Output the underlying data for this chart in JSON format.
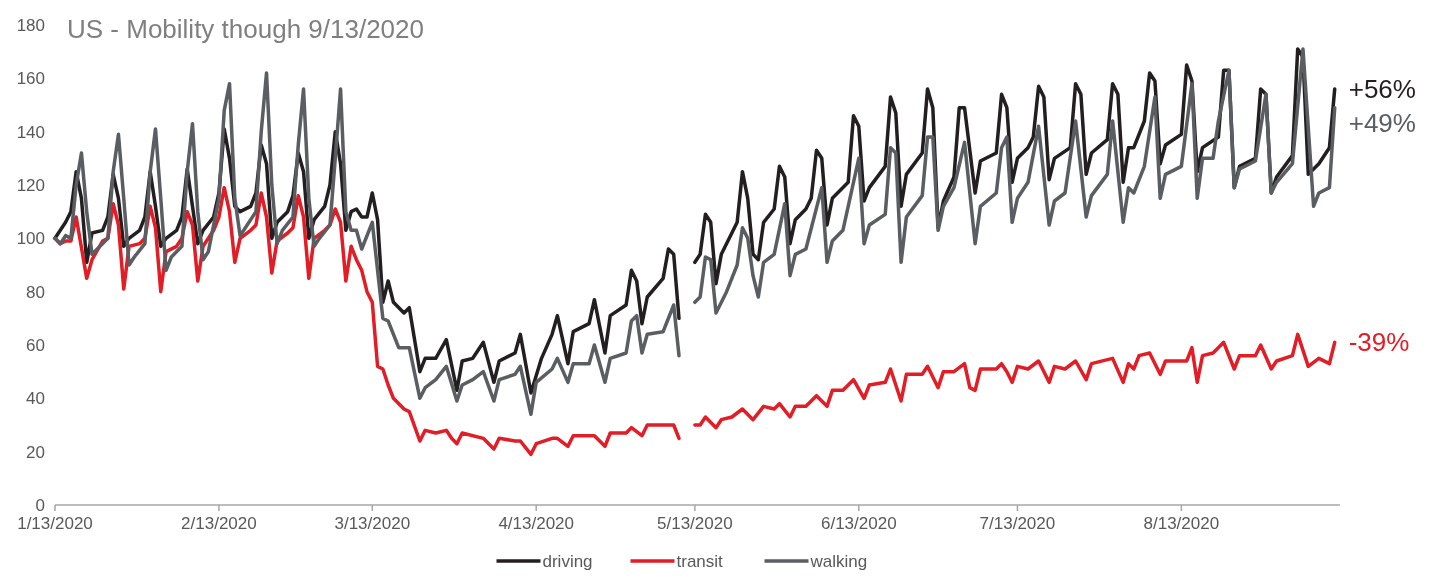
{
  "chart_data": {
    "type": "line",
    "title": "US - Mobility though 9/13/2020",
    "xlim": [
      "2020-01-13",
      "2020-09-12"
    ],
    "xticks": [
      {
        "value": "2020-01-13",
        "label": "1/13/2020"
      },
      {
        "value": "2020-02-13",
        "label": "2/13/2020"
      },
      {
        "value": "2020-03-13",
        "label": "3/13/2020"
      },
      {
        "value": "2020-04-13",
        "label": "4/13/2020"
      },
      {
        "value": "2020-05-13",
        "label": "5/13/2020"
      },
      {
        "value": "2020-06-13",
        "label": "6/13/2020"
      },
      {
        "value": "2020-07-13",
        "label": "7/13/2020"
      },
      {
        "value": "2020-08-13",
        "label": "8/13/2020"
      }
    ],
    "ylim": [
      0,
      180
    ],
    "yticks": [
      0,
      20,
      40,
      60,
      80,
      100,
      120,
      140,
      160,
      180
    ],
    "grid": false,
    "legend": "bottom",
    "marker": "none",
    "line_style": "solid",
    "annotations": [
      {
        "text": "+56%",
        "x": "2020-09-11",
        "y": 156
      },
      {
        "text": "-39%",
        "x": "2020-09-11",
        "y": 61
      },
      {
        "text": "+49%",
        "x": "2020-09-11",
        "y": 149
      }
    ],
    "series": [
      {
        "name": "driving",
        "color": "#231f20",
        "x": [
          "2020-01-13",
          "2020-01-15",
          "2020-01-16",
          "2020-01-17",
          "2020-01-18",
          "2020-01-19",
          "2020-01-20",
          "2020-01-22",
          "2020-01-23",
          "2020-01-24",
          "2020-01-25",
          "2020-01-26",
          "2020-01-27",
          "2020-01-29",
          "2020-01-30",
          "2020-01-31",
          "2020-02-01",
          "2020-02-02",
          "2020-02-03",
          "2020-02-05",
          "2020-02-06",
          "2020-02-07",
          "2020-02-08",
          "2020-02-09",
          "2020-02-10",
          "2020-02-12",
          "2020-02-13",
          "2020-02-14",
          "2020-02-15",
          "2020-02-16",
          "2020-02-17",
          "2020-02-19",
          "2020-02-20",
          "2020-02-21",
          "2020-02-22",
          "2020-02-23",
          "2020-02-24",
          "2020-02-26",
          "2020-02-27",
          "2020-02-28",
          "2020-02-29",
          "2020-03-01",
          "2020-03-02",
          "2020-03-04",
          "2020-03-05",
          "2020-03-06",
          "2020-03-07",
          "2020-03-08",
          "2020-03-09",
          "2020-03-10",
          "2020-03-11",
          "2020-03-12",
          "2020-03-13",
          "2020-03-14",
          "2020-03-15",
          "2020-03-16",
          "2020-03-17",
          "2020-03-19",
          "2020-03-20",
          "2020-03-22",
          "2020-03-23",
          "2020-03-25",
          "2020-03-27",
          "2020-03-29",
          "2020-03-30",
          "2020-04-01",
          "2020-04-03",
          "2020-04-05",
          "2020-04-06",
          "2020-04-09",
          "2020-04-10",
          "2020-04-12",
          "2020-04-14",
          "2020-04-16",
          "2020-04-17",
          "2020-04-19",
          "2020-04-20",
          "2020-04-23",
          "2020-04-24",
          "2020-04-26",
          "2020-04-27",
          "2020-04-30",
          "2020-05-01",
          "2020-05-02",
          "2020-05-03",
          "2020-05-04",
          "2020-05-07",
          "2020-05-08",
          "2020-05-09",
          "2020-05-10",
          "2020-05-11",
          "2020-05-13",
          "2020-05-14",
          "2020-05-15",
          "2020-05-16",
          "2020-05-17",
          "2020-05-18",
          "2020-05-20",
          "2020-05-21",
          "2020-05-22",
          "2020-05-23",
          "2020-05-24",
          "2020-05-25",
          "2020-05-26",
          "2020-05-28",
          "2020-05-29",
          "2020-05-30",
          "2020-05-31",
          "2020-06-01",
          "2020-06-03",
          "2020-06-04",
          "2020-06-05",
          "2020-06-06",
          "2020-06-07",
          "2020-06-08",
          "2020-06-11",
          "2020-06-12",
          "2020-06-13",
          "2020-06-14",
          "2020-06-15",
          "2020-06-18",
          "2020-06-19",
          "2020-06-20",
          "2020-06-21",
          "2020-06-22",
          "2020-06-25",
          "2020-06-26",
          "2020-06-27",
          "2020-06-28",
          "2020-06-29",
          "2020-07-01",
          "2020-07-02",
          "2020-07-03",
          "2020-07-05",
          "2020-07-06",
          "2020-07-09",
          "2020-07-10",
          "2020-07-11",
          "2020-07-12",
          "2020-07-13",
          "2020-07-15",
          "2020-07-16",
          "2020-07-17",
          "2020-07-18",
          "2020-07-19",
          "2020-07-20",
          "2020-07-23",
          "2020-07-24",
          "2020-07-25",
          "2020-07-26",
          "2020-07-27",
          "2020-07-30",
          "2020-07-31",
          "2020-08-01",
          "2020-08-02",
          "2020-08-03",
          "2020-08-04",
          "2020-08-06",
          "2020-08-07",
          "2020-08-08",
          "2020-08-09",
          "2020-08-10",
          "2020-08-13",
          "2020-08-14",
          "2020-08-15",
          "2020-08-16",
          "2020-08-17",
          "2020-08-20",
          "2020-08-21",
          "2020-08-22",
          "2020-08-23",
          "2020-08-24",
          "2020-08-27",
          "2020-08-28",
          "2020-08-29",
          "2020-08-30",
          "2020-08-31",
          "2020-09-03",
          "2020-09-04",
          "2020-09-05",
          "2020-09-06",
          "2020-09-08",
          "2020-09-10",
          "2020-09-11"
        ],
        "values": [
          100,
          106,
          110,
          125,
          115,
          91,
          102,
          103,
          108,
          124,
          115,
          97,
          100,
          103,
          108,
          125,
          112,
          97,
          100,
          103,
          108,
          126,
          112,
          98,
          103,
          108,
          117,
          141,
          130,
          112,
          110,
          112,
          117,
          135,
          128,
          100,
          106,
          110,
          116,
          132,
          125,
          100,
          107,
          112,
          120,
          140,
          128,
          103,
          110,
          111,
          108,
          108,
          117,
          107,
          76,
          84,
          76,
          72,
          74,
          50,
          55,
          55,
          62,
          43,
          54,
          55,
          61,
          46,
          54,
          57,
          64,
          42,
          55,
          64,
          71,
          53,
          65,
          68,
          77,
          57,
          71,
          75,
          88,
          84,
          68,
          78,
          85,
          96,
          94,
          70,
          null,
          91,
          94,
          109,
          106,
          83,
          94,
          102,
          106,
          125,
          115,
          94,
          92,
          106,
          111,
          127,
          123,
          98,
          107,
          111,
          115,
          133,
          130,
          105,
          115,
          121,
          146,
          142,
          114,
          119,
          127,
          153,
          147,
          112,
          124,
          132,
          156,
          149,
          104,
          114,
          123,
          149,
          149,
          117,
          129,
          132,
          154,
          149,
          121,
          130,
          134,
          138,
          157,
          153,
          122,
          130,
          134,
          158,
          154,
          124,
          132,
          137,
          158,
          154,
          121,
          134,
          134,
          144,
          162,
          159,
          128,
          135,
          139,
          165,
          159,
          125,
          134,
          138,
          163,
          163,
          119,
          127,
          130,
          156,
          154,
          117,
          123,
          131,
          171,
          168,
          124,
          128,
          134,
          156
        ]
      },
      {
        "name": "transit",
        "color": "#e21d26",
        "x": [
          "2020-01-13",
          "2020-01-14",
          "2020-01-15",
          "2020-01-16",
          "2020-01-17",
          "2020-01-19",
          "2020-01-20",
          "2020-01-22",
          "2020-01-23",
          "2020-01-24",
          "2020-01-25",
          "2020-01-26",
          "2020-01-27",
          "2020-01-29",
          "2020-01-30",
          "2020-01-31",
          "2020-02-01",
          "2020-02-02",
          "2020-02-03",
          "2020-02-05",
          "2020-02-06",
          "2020-02-07",
          "2020-02-08",
          "2020-02-09",
          "2020-02-10",
          "2020-02-12",
          "2020-02-13",
          "2020-02-14",
          "2020-02-15",
          "2020-02-16",
          "2020-02-17",
          "2020-02-19",
          "2020-02-20",
          "2020-02-21",
          "2020-02-22",
          "2020-02-23",
          "2020-02-24",
          "2020-02-26",
          "2020-02-27",
          "2020-02-28",
          "2020-02-29",
          "2020-03-01",
          "2020-03-02",
          "2020-03-04",
          "2020-03-05",
          "2020-03-06",
          "2020-03-07",
          "2020-03-08",
          "2020-03-09",
          "2020-03-10",
          "2020-03-11",
          "2020-03-12",
          "2020-03-13",
          "2020-03-14",
          "2020-03-15",
          "2020-03-16",
          "2020-03-17",
          "2020-03-19",
          "2020-03-20",
          "2020-03-22",
          "2020-03-23",
          "2020-03-25",
          "2020-03-27",
          "2020-03-28",
          "2020-03-29",
          "2020-03-30",
          "2020-04-03",
          "2020-04-05",
          "2020-04-06",
          "2020-04-09",
          "2020-04-10",
          "2020-04-12",
          "2020-04-13",
          "2020-04-16",
          "2020-04-17",
          "2020-04-19",
          "2020-04-20",
          "2020-04-24",
          "2020-04-26",
          "2020-04-27",
          "2020-04-30",
          "2020-05-01",
          "2020-05-03",
          "2020-05-04",
          "2020-05-08",
          "2020-05-09",
          "2020-05-10",
          "2020-05-11",
          "2020-05-13",
          "2020-05-14",
          "2020-05-15",
          "2020-05-17",
          "2020-05-18",
          "2020-05-20",
          "2020-05-22",
          "2020-05-24",
          "2020-05-26",
          "2020-05-28",
          "2020-05-29",
          "2020-05-31",
          "2020-06-01",
          "2020-06-03",
          "2020-06-05",
          "2020-06-07",
          "2020-06-08",
          "2020-06-10",
          "2020-06-12",
          "2020-06-14",
          "2020-06-15",
          "2020-06-18",
          "2020-06-19",
          "2020-06-21",
          "2020-06-22",
          "2020-06-25",
          "2020-06-26",
          "2020-06-28",
          "2020-06-29",
          "2020-07-01",
          "2020-07-03",
          "2020-07-04",
          "2020-07-05",
          "2020-07-06",
          "2020-07-09",
          "2020-07-10",
          "2020-07-11",
          "2020-07-12",
          "2020-07-13",
          "2020-07-15",
          "2020-07-17",
          "2020-07-19",
          "2020-07-20",
          "2020-07-22",
          "2020-07-24",
          "2020-07-26",
          "2020-07-27",
          "2020-07-31",
          "2020-08-02",
          "2020-08-03",
          "2020-08-04",
          "2020-08-05",
          "2020-08-07",
          "2020-08-09",
          "2020-08-10",
          "2020-08-14",
          "2020-08-15",
          "2020-08-16",
          "2020-08-17",
          "2020-08-19",
          "2020-08-21",
          "2020-08-23",
          "2020-08-24",
          "2020-08-27",
          "2020-08-28",
          "2020-08-30",
          "2020-08-31",
          "2020-09-03",
          "2020-09-04",
          "2020-09-06",
          "2020-09-08",
          "2020-09-10",
          "2020-09-11"
        ],
        "values": [
          100,
          98,
          99,
          99,
          108,
          85,
          92,
          99,
          100,
          113,
          105,
          81,
          97,
          98,
          100,
          112,
          104,
          80,
          95,
          97,
          100,
          110,
          105,
          84,
          97,
          103,
          108,
          119,
          110,
          91,
          100,
          103,
          105,
          117,
          108,
          87,
          99,
          102,
          104,
          116,
          108,
          85,
          100,
          103,
          105,
          111,
          106,
          84,
          97,
          92,
          88,
          80,
          76,
          52,
          51,
          45,
          40,
          36,
          35,
          24,
          28,
          27,
          28,
          25,
          23,
          27,
          25,
          21,
          25,
          24,
          24,
          19,
          23,
          25,
          25,
          22,
          26,
          26,
          22,
          27,
          27,
          29,
          26,
          30,
          30,
          30,
          25,
          null,
          30,
          30,
          33,
          29,
          32,
          33,
          36,
          32,
          37,
          36,
          38,
          33,
          37,
          37,
          41,
          37,
          43,
          43,
          47,
          40,
          45,
          46,
          51,
          39,
          49,
          49,
          52,
          44,
          50,
          50,
          53,
          44,
          43,
          51,
          51,
          53,
          50,
          46,
          52,
          51,
          54,
          46,
          52,
          51,
          54,
          47,
          53,
          55,
          46,
          53,
          51,
          56,
          57,
          49,
          54,
          54,
          59,
          46,
          56,
          57,
          61,
          51,
          56,
          56,
          60,
          51,
          54,
          56,
          64,
          52,
          55,
          53,
          61
        ]
      },
      {
        "name": "walking",
        "color": "#5a5d61",
        "x": [
          "2020-01-13",
          "2020-01-14",
          "2020-01-15",
          "2020-01-16",
          "2020-01-17",
          "2020-01-18",
          "2020-01-19",
          "2020-01-20",
          "2020-01-21",
          "2020-01-23",
          "2020-01-24",
          "2020-01-25",
          "2020-01-26",
          "2020-01-27",
          "2020-01-28",
          "2020-01-30",
          "2020-01-31",
          "2020-02-01",
          "2020-02-02",
          "2020-02-03",
          "2020-02-04",
          "2020-02-06",
          "2020-02-07",
          "2020-02-08",
          "2020-02-09",
          "2020-02-10",
          "2020-02-11",
          "2020-02-13",
          "2020-02-14",
          "2020-02-15",
          "2020-02-16",
          "2020-02-17",
          "2020-02-18",
          "2020-02-20",
          "2020-02-21",
          "2020-02-22",
          "2020-02-23",
          "2020-02-24",
          "2020-02-25",
          "2020-02-27",
          "2020-02-28",
          "2020-02-29",
          "2020-03-01",
          "2020-03-02",
          "2020-03-03",
          "2020-03-05",
          "2020-03-06",
          "2020-03-07",
          "2020-03-08",
          "2020-03-09",
          "2020-03-10",
          "2020-03-11",
          "2020-03-13",
          "2020-03-15",
          "2020-03-16",
          "2020-03-18",
          "2020-03-20",
          "2020-03-22",
          "2020-03-23",
          "2020-03-25",
          "2020-03-27",
          "2020-03-29",
          "2020-03-30",
          "2020-04-01",
          "2020-04-03",
          "2020-04-05",
          "2020-04-06",
          "2020-04-09",
          "2020-04-10",
          "2020-04-12",
          "2020-04-13",
          "2020-04-16",
          "2020-04-17",
          "2020-04-19",
          "2020-04-20",
          "2020-04-23",
          "2020-04-24",
          "2020-04-26",
          "2020-04-27",
          "2020-04-30",
          "2020-05-01",
          "2020-05-02",
          "2020-05-03",
          "2020-05-04",
          "2020-05-07",
          "2020-05-09",
          "2020-05-10",
          "2020-05-11",
          "2020-05-13",
          "2020-05-14",
          "2020-05-15",
          "2020-05-16",
          "2020-05-17",
          "2020-05-19",
          "2020-05-21",
          "2020-05-22",
          "2020-05-23",
          "2020-05-24",
          "2020-05-25",
          "2020-05-26",
          "2020-05-28",
          "2020-05-30",
          "2020-05-31",
          "2020-06-01",
          "2020-06-03",
          "2020-06-06",
          "2020-06-07",
          "2020-06-08",
          "2020-06-10",
          "2020-06-13",
          "2020-06-14",
          "2020-06-15",
          "2020-06-18",
          "2020-06-19",
          "2020-06-20",
          "2020-06-21",
          "2020-06-22",
          "2020-06-25",
          "2020-06-26",
          "2020-06-27",
          "2020-06-28",
          "2020-06-29",
          "2020-07-01",
          "2020-07-03",
          "2020-07-05",
          "2020-07-06",
          "2020-07-09",
          "2020-07-10",
          "2020-07-11",
          "2020-07-12",
          "2020-07-13",
          "2020-07-15",
          "2020-07-17",
          "2020-07-19",
          "2020-07-20",
          "2020-07-22",
          "2020-07-24",
          "2020-07-26",
          "2020-07-27",
          "2020-07-30",
          "2020-07-31",
          "2020-08-02",
          "2020-08-03",
          "2020-08-04",
          "2020-08-06",
          "2020-08-08",
          "2020-08-09",
          "2020-08-10",
          "2020-08-13",
          "2020-08-15",
          "2020-08-16",
          "2020-08-17",
          "2020-08-19",
          "2020-08-20",
          "2020-08-22",
          "2020-08-23",
          "2020-08-24",
          "2020-08-27",
          "2020-08-29",
          "2020-08-30",
          "2020-08-31",
          "2020-09-03",
          "2020-09-05",
          "2020-09-07",
          "2020-09-08",
          "2020-09-10",
          "2020-09-11"
        ],
        "values": [
          100,
          98,
          101,
          100,
          120,
          132,
          110,
          94,
          96,
          100,
          125,
          139,
          115,
          90,
          93,
          98,
          125,
          141,
          115,
          88,
          93,
          97,
          125,
          143,
          110,
          92,
          95,
          115,
          148,
          158,
          115,
          101,
          104,
          110,
          140,
          162,
          120,
          98,
          103,
          108,
          135,
          156,
          115,
          97,
          100,
          105,
          130,
          156,
          110,
          103,
          103,
          96,
          106,
          70,
          69,
          59,
          59,
          40,
          44,
          47,
          52,
          39,
          45,
          47,
          50,
          39,
          47,
          49,
          52,
          34,
          46,
          51,
          55,
          46,
          53,
          53,
          60,
          46,
          55,
          57,
          69,
          71,
          57,
          64,
          65,
          75,
          56,
          null,
          76,
          78,
          93,
          92,
          72,
          80,
          90,
          104,
          100,
          86,
          78,
          91,
          94,
          113,
          86,
          94,
          96,
          119,
          91,
          99,
          103,
          130,
          98,
          105,
          109,
          134,
          132,
          91,
          108,
          116,
          138,
          138,
          103,
          112,
          119,
          136,
          98,
          112,
          117,
          134,
          138,
          106,
          115,
          121,
          142,
          105,
          114,
          117,
          144,
          108,
          116,
          124,
          144,
          106,
          119,
          117,
          127,
          153,
          115,
          124,
          127,
          158,
          115,
          130,
          130,
          144,
          163,
          119,
          126,
          129,
          154,
          117,
          121,
          128,
          171,
          112,
          117,
          119,
          149
        ]
      }
    ]
  }
}
